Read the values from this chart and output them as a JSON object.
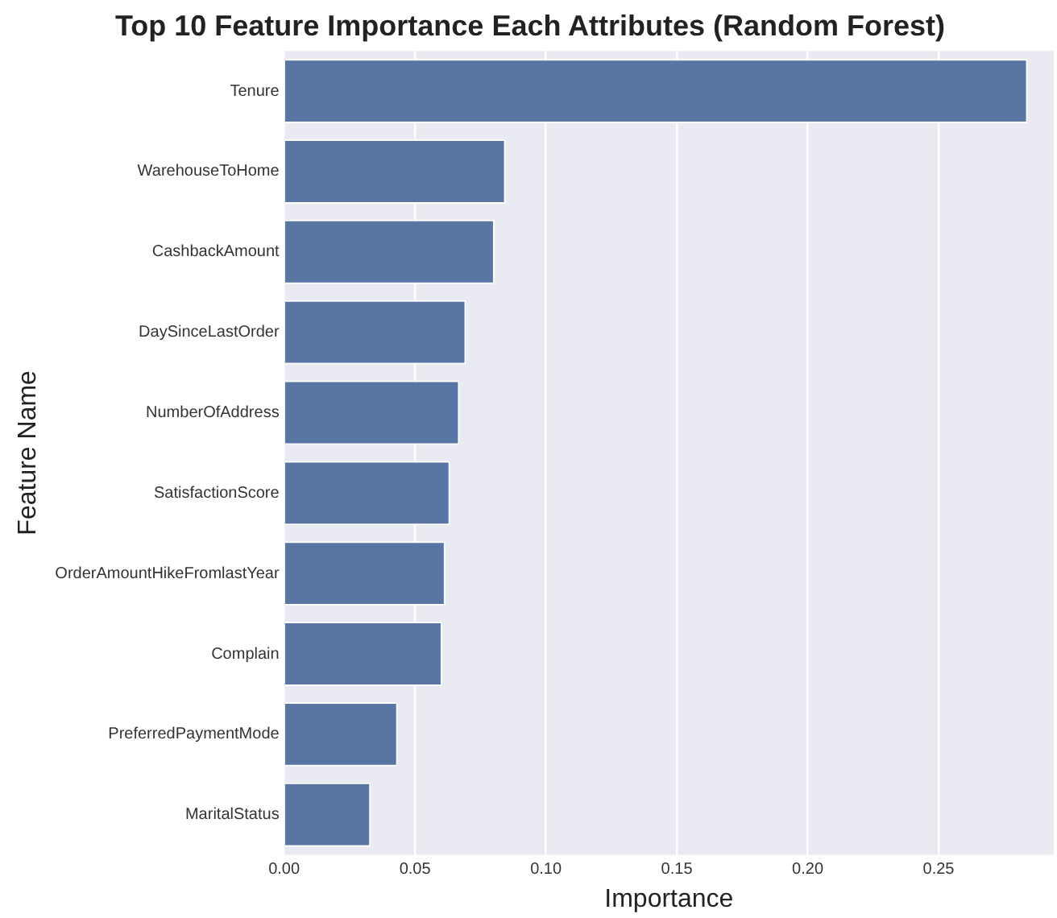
{
  "chart_data": {
    "type": "bar",
    "orientation": "horizontal",
    "title": "Top 10 Feature Importance Each Attributes (Random Forest)",
    "xlabel": "Importance",
    "ylabel": "Feature Name",
    "categories": [
      "Tenure",
      "WarehouseToHome",
      "CashbackAmount",
      "DaySinceLastOrder",
      "NumberOfAddress",
      "SatisfactionScore",
      "OrderAmountHikeFromlastYear",
      "Complain",
      "PreferredPaymentMode",
      "MaritalStatus"
    ],
    "values": [
      0.284,
      0.0846,
      0.0804,
      0.0695,
      0.067,
      0.0634,
      0.0616,
      0.0604,
      0.0434,
      0.0331
    ],
    "color": "#5875a4",
    "xlim": [
      0,
      0.294
    ],
    "xticks": [
      {
        "value": 0,
        "label": "0.00"
      },
      {
        "value": 0.05,
        "label": "0.05"
      },
      {
        "value": 0.1,
        "label": "0.10"
      },
      {
        "value": 0.15,
        "label": "0.15"
      },
      {
        "value": 0.2,
        "label": "0.20"
      },
      {
        "value": 0.25,
        "label": "0.25"
      }
    ],
    "grid": "x"
  }
}
